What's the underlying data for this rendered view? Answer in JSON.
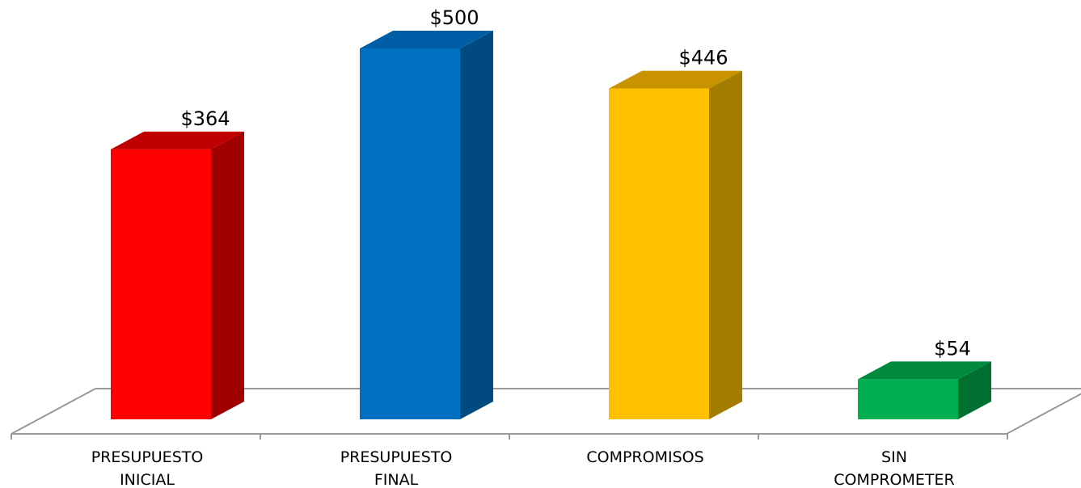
{
  "chart_data": {
    "type": "bar",
    "categories": [
      [
        "PRESUPUESTO",
        "INICIAL"
      ],
      [
        "PRESUPUESTO",
        "FINAL"
      ],
      [
        "COMPROMISOS"
      ],
      [
        "SIN",
        "COMPROMETER"
      ]
    ],
    "values": [
      364,
      500,
      446,
      54
    ],
    "value_labels": [
      "$364",
      "$500",
      "$446",
      "$54"
    ],
    "title": "",
    "xlabel": "",
    "ylabel": "",
    "ylim": [
      0,
      500
    ],
    "style": "3d-column",
    "grid": false,
    "legend": "none",
    "colors": [
      {
        "front": "#ff0000",
        "top": "#c00000",
        "side": "#a00000"
      },
      {
        "front": "#0070c0",
        "top": "#005ea6",
        "side": "#004a80"
      },
      {
        "front": "#ffc000",
        "top": "#c89200",
        "side": "#a37c00"
      },
      {
        "front": "#00b050",
        "top": "#008a3e",
        "side": "#007030"
      }
    ],
    "floor_color": "#999999"
  }
}
